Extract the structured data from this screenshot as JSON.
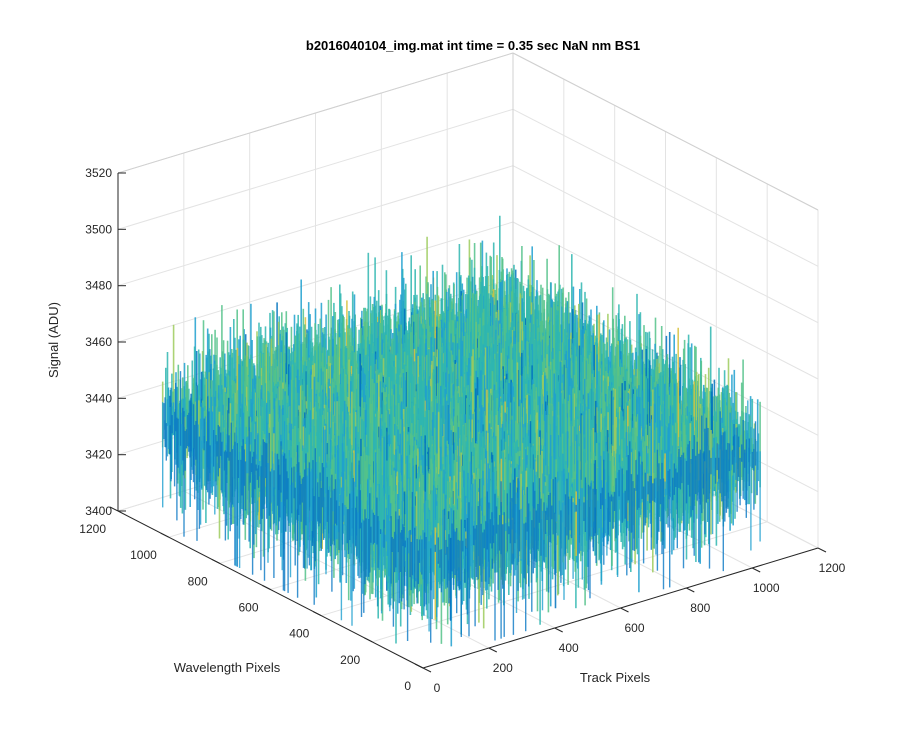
{
  "figure": {
    "background": "#ffffff"
  },
  "chart_data": {
    "type": "surface",
    "title": "b2016040104_img.mat int time = 0.35 sec  NaN nm BS1",
    "xlabel": "Track Pixels",
    "ylabel": "Wavelength Pixels",
    "zlabel": "Signal (ADU)",
    "xlim": [
      0,
      1200
    ],
    "ylim": [
      0,
      1200
    ],
    "zlim": [
      3400,
      3520
    ],
    "xticks": [
      "0",
      "200",
      "400",
      "600",
      "800",
      "1000",
      "1200"
    ],
    "yticks": [
      "0",
      "200",
      "400",
      "600",
      "800",
      "1000",
      "1200"
    ],
    "zticks": [
      "3400",
      "3420",
      "3440",
      "3460",
      "3480",
      "3500",
      "3520"
    ],
    "grid": true,
    "data_extent": {
      "x": [
        0,
        1024
      ],
      "y": [
        0,
        1024
      ]
    },
    "signal_mean": 3440,
    "signal_std_estimate": 6,
    "signal_max_approx": 3498,
    "colormap": [
      "#0072bd",
      "#1fa0cf",
      "#2fb6b0",
      "#54c28a",
      "#9ecb5d",
      "#d7c23e"
    ]
  }
}
